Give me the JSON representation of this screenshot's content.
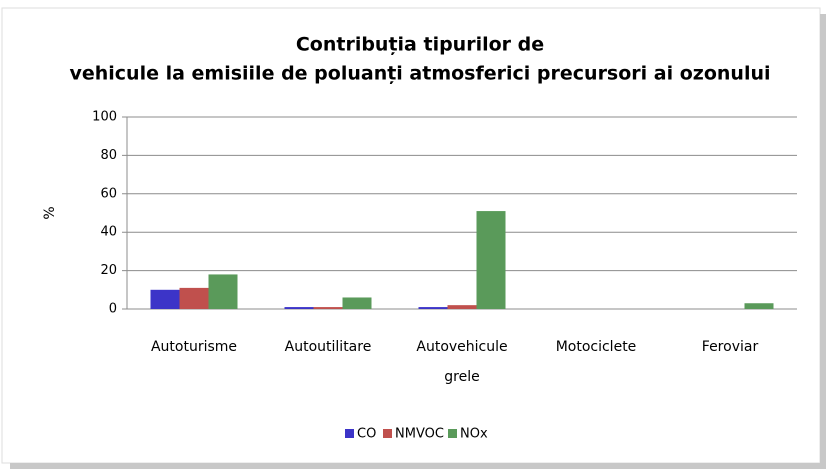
{
  "chart_data": {
    "type": "bar",
    "title": "Contribuția tipurilor de vehicule la emisiile de poluanți atmosferici precursori ai ozonului",
    "y_label": "%",
    "categories": [
      "Autoturisme",
      "Autoutilitare",
      "Autovehicule grele",
      "Motociclete",
      "Feroviar"
    ],
    "series": [
      {
        "name": "CO",
        "color": "#3c34c8",
        "values": [
          10,
          1,
          1,
          0,
          0
        ]
      },
      {
        "name": "NMVOC",
        "color": "#c0504d",
        "values": [
          11,
          1,
          2,
          0,
          0
        ]
      },
      {
        "name": "NOx",
        "color": "#5a9a5a",
        "values": [
          18,
          6,
          51,
          0,
          3
        ]
      }
    ],
    "ylim": [
      0,
      100
    ],
    "yticks": [
      0,
      20,
      40,
      60,
      80,
      100
    ],
    "grid": true,
    "legend": "bottom"
  }
}
